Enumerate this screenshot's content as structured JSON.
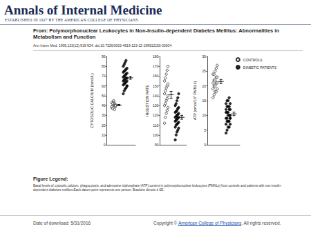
{
  "header": {
    "journal": "Annals of Internal Medicine",
    "tagline": "ESTABLISHED IN 1927 BY THE AMERICAN COLLEGE OF PHYSICIANS",
    "from": "From: Polymorphonuclear Leukocytes in Non-Insulin-dependent Diabetes Mellitus: Abnormalities in Metabolism and Function",
    "citation": "Ann Intern Med. 1995;123(12):919-924. doi:10.7326/0003-4819-123-12-199512150-00004"
  },
  "chart_data": [
    {
      "type": "scatter",
      "ylabel": "CYTOSOLIC CALCIUM (nmol/L)",
      "ylim": [
        0,
        90
      ],
      "yticks": [
        0,
        10,
        20,
        30,
        40,
        50,
        60,
        70,
        80,
        90
      ],
      "tick_labels": "y",
      "series": [
        {
          "color": "#000000",
          "marker": "open",
          "values": [
            38,
            40,
            41,
            42,
            39,
            43,
            37,
            44,
            40,
            41,
            39,
            42,
            45,
            36,
            40
          ],
          "mean": 40.5,
          "error": 0.6
        },
        {
          "color": "#000000",
          "marker": "filled",
          "values": [
            52,
            55,
            57,
            58,
            60,
            61,
            62,
            63,
            64,
            65,
            65,
            66,
            67,
            68,
            68,
            69,
            70,
            71,
            72,
            73,
            74,
            75,
            76,
            77,
            78,
            80,
            82,
            84,
            86,
            60
          ],
          "mean": 68.3,
          "error": 1.5
        }
      ]
    },
    {
      "type": "scatter",
      "ylabel": "INGESTION RATE",
      "ylim": [
        90,
        180
      ],
      "yticks": [
        90,
        100,
        110,
        120,
        130,
        140,
        150,
        160,
        170,
        180
      ],
      "tick_labels": "y",
      "series": [
        {
          "color": "#000000",
          "marker": "open",
          "values": [
            112,
            118,
            122,
            125,
            128,
            130,
            132,
            135,
            137,
            140,
            142,
            145,
            148,
            150,
            152,
            155,
            158,
            162,
            166,
            170
          ],
          "mean": 141,
          "error": 3.5
        },
        {
          "color": "#000000",
          "marker": "filled",
          "values": [
            95,
            100,
            103,
            105,
            107,
            108,
            110,
            111,
            112,
            113,
            114,
            115,
            116,
            117,
            118,
            118,
            119,
            120,
            121,
            122,
            123,
            124,
            125,
            127,
            128,
            130,
            132,
            135,
            138,
            142
          ],
          "mean": 118,
          "error": 2
        }
      ]
    },
    {
      "type": "scatter",
      "ylabel": "ATP (nmol/10⁷ PMNLs)",
      "ylim": [
        0,
        30
      ],
      "yticks": [
        0,
        5,
        10,
        15,
        20,
        25,
        30
      ],
      "tick_labels": "y",
      "legend": "upper right",
      "series": [
        {
          "name": "CONTROLS",
          "color": "#000000",
          "marker": "open",
          "values": [
            16,
            17,
            18,
            18,
            19,
            19,
            20,
            20,
            21,
            21,
            21,
            22,
            22,
            23,
            23,
            24,
            24,
            25,
            26,
            27
          ],
          "mean": 21.5,
          "error": 0.7
        },
        {
          "name": "DIABETIC PATIENTS",
          "color": "#000000",
          "marker": "filled",
          "values": [
            4,
            5,
            6,
            6,
            7,
            7,
            8,
            8,
            8,
            9,
            9,
            9,
            10,
            10,
            10,
            11,
            11,
            11,
            12,
            12,
            12,
            13,
            13,
            13,
            14,
            14,
            15,
            15,
            16,
            9
          ],
          "mean": 10.5,
          "error": 0.6
        }
      ]
    }
  ],
  "figure_legend": {
    "heading": "Figure Legend:",
    "text": "Basal levels of cytosolic calcium, phagocytosis, and adenosine triphosphate (ATP) content in polymorphonuclear leukocytes (PMNLs) from controls and patients with non-insulin-dependent diabetes mellitus.Each datum point represents one person. Brackets denote ± SE."
  },
  "footer": {
    "date": "Date of download:  5/31/2016",
    "copyright": "Copyright © ",
    "link": "American College of Physicians",
    "rights": ". All rights reserved."
  }
}
